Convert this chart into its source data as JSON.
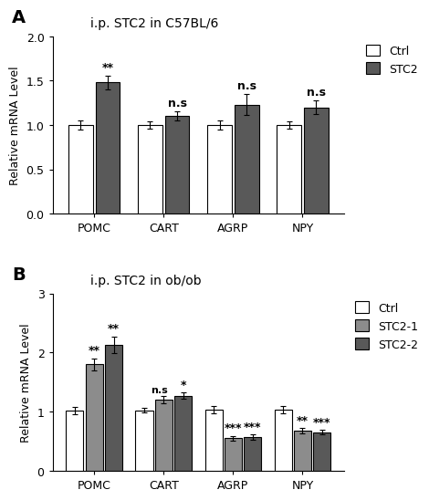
{
  "panel_A": {
    "title": "i.p. STC2 in C57BL/6",
    "categories": [
      "POMC",
      "CART",
      "AGRP",
      "NPY"
    ],
    "ctrl_values": [
      1.0,
      1.0,
      1.0,
      1.0
    ],
    "ctrl_errors": [
      0.05,
      0.04,
      0.05,
      0.04
    ],
    "stc2_values": [
      1.48,
      1.1,
      1.23,
      1.2
    ],
    "stc2_errors": [
      0.08,
      0.05,
      0.12,
      0.08
    ],
    "annotations": [
      "**",
      "n.s",
      "n.s",
      "n.s"
    ],
    "ylim": [
      0,
      2.0
    ],
    "yticks": [
      0.0,
      0.5,
      1.0,
      1.5,
      2.0
    ],
    "ylabel": "Relative mRNA Level",
    "legend_labels": [
      "Ctrl",
      "STC2"
    ],
    "bar_colors": [
      "white",
      "#595959"
    ],
    "bar_edgecolor": "black"
  },
  "panel_B": {
    "title": "i.p. STC2 in ob/ob",
    "categories": [
      "POMC",
      "CART",
      "AGRP",
      "NPY"
    ],
    "ctrl_values": [
      1.02,
      1.02,
      1.03,
      1.03
    ],
    "ctrl_errors": [
      0.06,
      0.04,
      0.06,
      0.06
    ],
    "stc21_values": [
      1.8,
      1.2,
      0.55,
      0.68
    ],
    "stc21_errors": [
      0.1,
      0.06,
      0.04,
      0.04
    ],
    "stc22_values": [
      2.13,
      1.27,
      0.57,
      0.65
    ],
    "stc22_errors": [
      0.14,
      0.05,
      0.04,
      0.04
    ],
    "annotations_stc21": [
      "**",
      "n.s",
      "***",
      "**"
    ],
    "annotations_stc22": [
      "**",
      "*",
      "***",
      "***"
    ],
    "ylim": [
      0,
      3.0
    ],
    "yticks": [
      0,
      1,
      2,
      3
    ],
    "ylabel": "Relative mRNA Level",
    "legend_labels": [
      "Ctrl",
      "STC2-1",
      "STC2-2"
    ],
    "bar_colors": [
      "white",
      "#8c8c8c",
      "#595959"
    ],
    "bar_edgecolor": "black"
  },
  "label_A": "A",
  "label_B": "B"
}
